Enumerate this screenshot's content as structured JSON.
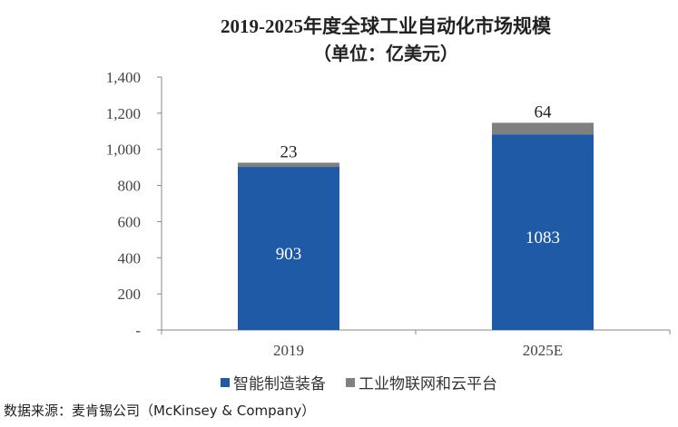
{
  "chart_data": {
    "type": "bar",
    "stacked": true,
    "title": "2019-2025年度全球工业自动化市场规模",
    "subtitle": "（单位：亿美元）",
    "categories": [
      "2019",
      "2025E"
    ],
    "series": [
      {
        "name": "智能制造装备",
        "values": [
          903,
          1083
        ],
        "color": "#1F5AA6"
      },
      {
        "name": "工业物联网和云平台",
        "values": [
          23,
          64
        ],
        "color": "#808080"
      }
    ],
    "ylim": [
      0,
      1400
    ],
    "yticks": [
      0,
      200,
      400,
      600,
      800,
      1000,
      1200,
      1400
    ],
    "ytick_labels": [
      "-",
      "200",
      "400",
      "600",
      "800",
      "1,000",
      "1,200",
      "1,400"
    ],
    "legend": "bottom",
    "grid": false
  },
  "source": "数据来源：麦肯锡公司（McKinsey & Company）"
}
